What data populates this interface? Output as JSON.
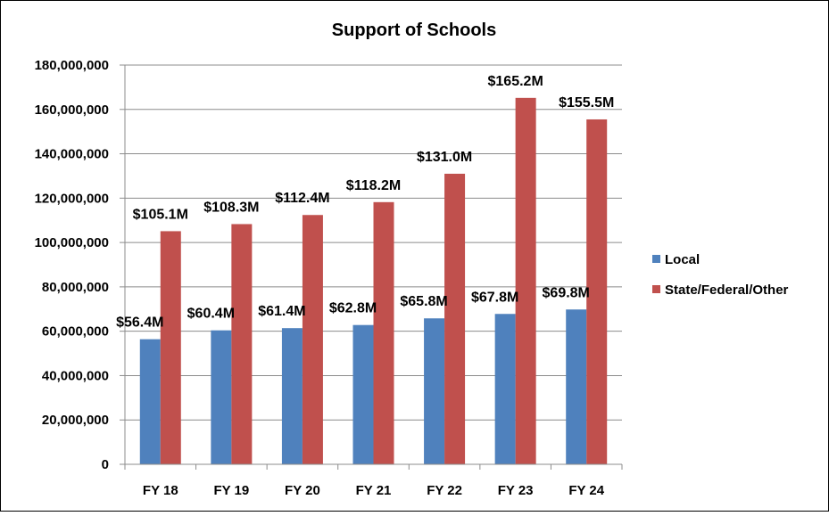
{
  "chart_data": {
    "type": "bar",
    "title": "Support of Schools",
    "xlabel": "",
    "ylabel": "",
    "ylim": [
      0,
      180000000
    ],
    "yticks": [
      0,
      20000000,
      40000000,
      60000000,
      80000000,
      100000000,
      120000000,
      140000000,
      160000000,
      180000000
    ],
    "ytick_labels": [
      "0",
      "20,000,000",
      "40,000,000",
      "60,000,000",
      "80,000,000",
      "100,000,000",
      "120,000,000",
      "140,000,000",
      "160,000,000",
      "180,000,000"
    ],
    "grid": true,
    "legend_position": "right",
    "categories": [
      "FY 18",
      "FY 19",
      "FY 20",
      "FY 21",
      "FY 22",
      "FY 23",
      "FY 24"
    ],
    "series": [
      {
        "name": "Local",
        "color": "#4F81BD",
        "values": [
          56400000,
          60400000,
          61400000,
          62800000,
          65800000,
          67800000,
          69800000
        ],
        "labels": [
          "$56.4M",
          "$60.4M",
          "$61.4M",
          "$62.8M",
          "$65.8M",
          "$67.8M",
          "$69.8M"
        ]
      },
      {
        "name": "State/Federal/Other",
        "color": "#C0504D",
        "values": [
          105100000,
          108300000,
          112400000,
          118200000,
          131000000,
          165200000,
          155500000
        ],
        "labels": [
          "$105.1M",
          "$108.3M",
          "$112.4M",
          "$118.2M",
          "$131.0M",
          "$165.2M",
          "$155.5M"
        ]
      }
    ]
  }
}
